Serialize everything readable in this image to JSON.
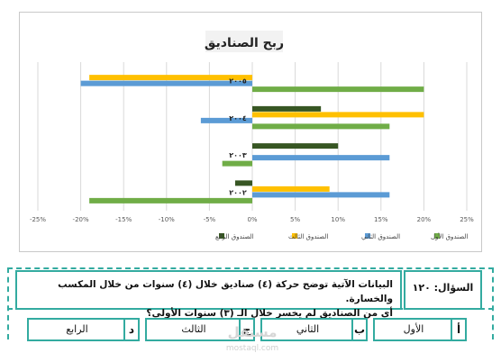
{
  "chart_data": {
    "type": "bar",
    "orientation": "horizontal",
    "title": "ربح الصناديق",
    "categories": [
      "٢٠٠٢",
      "٢٠٠٣",
      "٢٠٠٤",
      "٢٠٠٥"
    ],
    "series": [
      {
        "name": "الصندوق الأول",
        "color": "#70ad47",
        "values": [
          -19,
          -3.5,
          16,
          20
        ]
      },
      {
        "name": "الصندوق الثاني",
        "color": "#5b9bd5",
        "values": [
          16,
          16,
          -6,
          -20
        ]
      },
      {
        "name": "الصندوق الثالث",
        "color": "#ffc000",
        "values": [
          9,
          0,
          20,
          -19
        ]
      },
      {
        "name": "الصندوق الرابع",
        "color": "#375623",
        "values": [
          -2,
          10,
          8,
          0
        ]
      }
    ],
    "xlim": [
      -25,
      25
    ],
    "xticks": [
      "-25%",
      "-20%",
      "-15%",
      "-10%",
      "-5%",
      "0%",
      "5%",
      "10%",
      "15%",
      "20%",
      "25%"
    ],
    "grid": true,
    "legend": "bottom"
  },
  "question": {
    "number_label": "السؤال: ١٢٠",
    "line1": "البيانات الآتية توضح حركة (٤) صناديق خلال (٤) سنوات من خلال المكسب والخسارة.",
    "line2": "أي من الصناديق لم يخسر خلال الـ (٣) سنوات الأولى؟"
  },
  "options": [
    {
      "letter": "أ",
      "text": "الأول"
    },
    {
      "letter": "ب",
      "text": "الثاني"
    },
    {
      "letter": "ج",
      "text": "الثالث"
    },
    {
      "letter": "د",
      "text": "الرابع"
    }
  ],
  "watermark": {
    "brand": "مستقل",
    "url": "mostaql.com"
  }
}
